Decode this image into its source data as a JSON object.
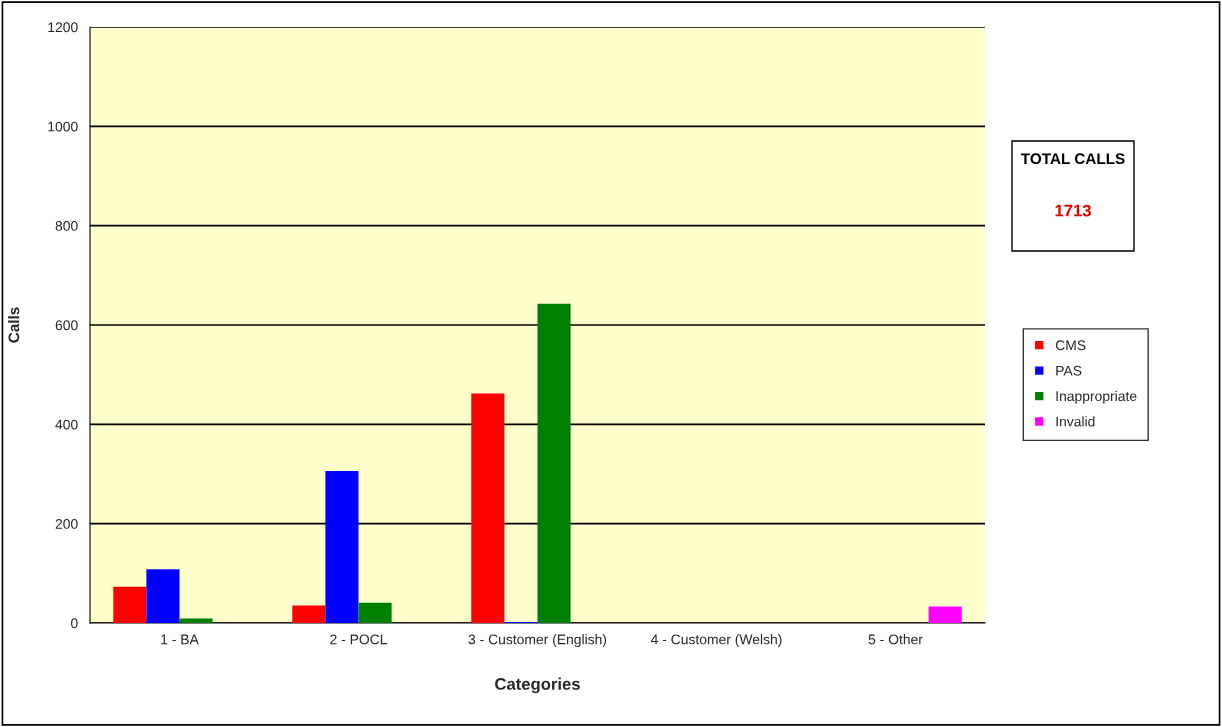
{
  "chart_data": {
    "type": "bar",
    "xlabel": "Categories",
    "ylabel": "Calls",
    "categories": [
      "1 - BA",
      "2 - POCL",
      "3 - Customer (English)",
      "4 - Customer (Welsh)",
      "5 - Other"
    ],
    "series": [
      {
        "name": "CMS",
        "color": "#ff0000",
        "values": [
          73,
          35,
          462,
          0,
          0
        ]
      },
      {
        "name": "PAS",
        "color": "#0000ff",
        "values": [
          108,
          306,
          2,
          0,
          0
        ]
      },
      {
        "name": "Inappropriate",
        "color": "#008000",
        "values": [
          9,
          41,
          643,
          0,
          0
        ]
      },
      {
        "name": "Invalid",
        "color": "#ff00ff",
        "values": [
          0,
          0,
          0,
          0,
          33
        ]
      }
    ],
    "ylim": [
      0,
      1200
    ],
    "yticks": [
      0,
      200,
      400,
      600,
      800,
      1000,
      1200
    ],
    "grid": "y",
    "legend": "right",
    "annotations": [
      "TOTAL CALLS",
      "1713"
    ]
  }
}
